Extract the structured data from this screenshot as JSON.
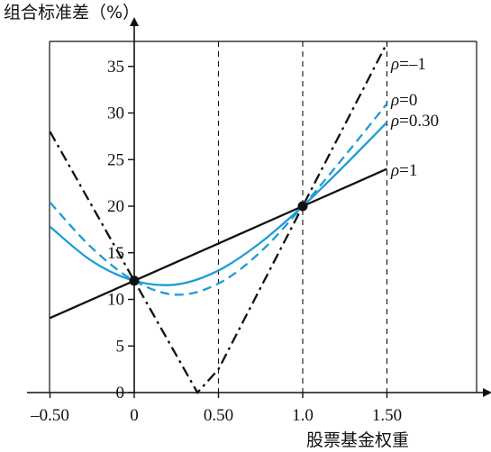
{
  "chart_data": {
    "type": "line",
    "ylabel": "组合标准差（%）",
    "xlabel": "股票基金权重",
    "x_ticks": [
      "–0.50",
      "0",
      "0.50",
      "1.0",
      "1.50"
    ],
    "x_tick_values": [
      -0.5,
      0,
      0.5,
      1.0,
      1.5
    ],
    "y_ticks": [
      "0",
      "5",
      "10",
      "15",
      "20",
      "25",
      "30",
      "35"
    ],
    "y_tick_values": [
      0,
      5,
      10,
      15,
      20,
      25,
      30,
      35
    ],
    "xlim": [
      -0.5,
      2.0
    ],
    "ylim": [
      0,
      38
    ],
    "dashed_verticals": [
      0.5,
      1.0,
      1.5
    ],
    "points": [
      {
        "x": 0,
        "y": 12
      },
      {
        "x": 1.0,
        "y": 20
      }
    ],
    "series": [
      {
        "rho_symbol": "ρ",
        "rho_value": "=–1",
        "style": "dash-dot",
        "color": "#111111",
        "x": [
          -0.5,
          0,
          0.25,
          0.375,
          0.5,
          0.75,
          1.0,
          1.25,
          1.5
        ],
        "y": [
          28,
          12,
          4,
          0,
          2.5,
          11.25,
          20,
          28.75,
          37.5
        ]
      },
      {
        "rho_symbol": "ρ",
        "rho_value": "=0",
        "style": "dashed",
        "color": "#1e9bd7",
        "x": [
          -0.5,
          -0.25,
          0,
          0.25,
          0.5,
          0.75,
          1.0,
          1.25,
          1.5
        ],
        "y": [
          20.4,
          15.5,
          12,
          10.5,
          11.7,
          15.1,
          20,
          25.4,
          31
        ]
      },
      {
        "rho_symbol": "ρ",
        "rho_value": "=0.30",
        "style": "solid",
        "color": "#1e9bd7",
        "x": [
          -0.5,
          -0.25,
          0,
          0.25,
          0.5,
          0.75,
          1.0,
          1.25,
          1.5
        ],
        "y": [
          17.8,
          14.1,
          12,
          11.6,
          13.1,
          16.1,
          20,
          24.4,
          29
        ]
      },
      {
        "rho_symbol": "ρ",
        "rho_value": "=1",
        "style": "solid",
        "color": "#111111",
        "x": [
          -0.5,
          0,
          0.5,
          1.0,
          1.5
        ],
        "y": [
          8,
          12,
          16,
          20,
          24
        ]
      }
    ]
  }
}
